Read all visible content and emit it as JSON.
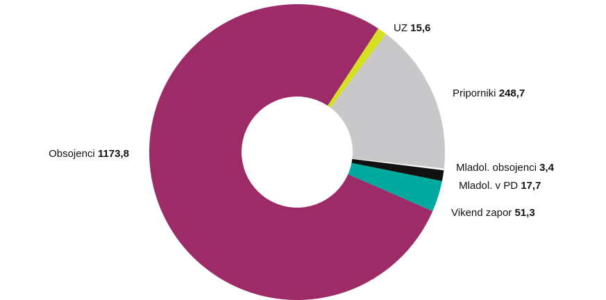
{
  "chart_data": {
    "type": "pie",
    "donut": true,
    "categories": [
      "UZ",
      "Priporniki",
      "Mladol. obsojenci",
      "Mladol. v PD",
      "Vikend zapor",
      "Obsojenci"
    ],
    "values": [
      15.6,
      248.7,
      3.4,
      17.7,
      51.3,
      1173.8
    ],
    "value_labels": [
      "15,6",
      "248,7",
      "3,4",
      "17,7",
      "51,3",
      "1173,8"
    ],
    "colors": [
      "#d4e021",
      "#c8c8ca",
      "#ffffff",
      "#111111",
      "#00a99d",
      "#9c2b67"
    ]
  }
}
